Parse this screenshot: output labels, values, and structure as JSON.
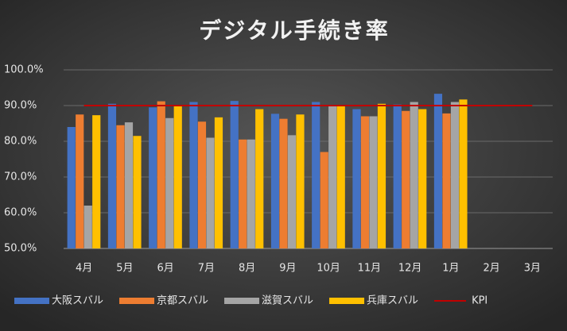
{
  "chart_data": {
    "type": "bar",
    "title": "デジタル手続き率",
    "categories": [
      "4月",
      "5月",
      "6月",
      "7月",
      "8月",
      "9月",
      "10月",
      "11月",
      "12月",
      "1月",
      "2月",
      "3月"
    ],
    "series": [
      {
        "name": "大阪スバル",
        "color": "#4472c4",
        "values": [
          84,
          90.5,
          89.5,
          91,
          91.3,
          87.7,
          91,
          89,
          90.3,
          93.3,
          null,
          null
        ]
      },
      {
        "name": "京都スバル",
        "color": "#ed7d31",
        "values": [
          87.5,
          84.5,
          91.2,
          85.5,
          80.5,
          86.3,
          77,
          87,
          88.5,
          87.8,
          null,
          null
        ]
      },
      {
        "name": "滋賀スバル",
        "color": "#a5a5a5",
        "values": [
          62,
          85.3,
          86.5,
          81,
          80.5,
          81.7,
          90,
          87,
          91,
          91,
          null,
          null
        ]
      },
      {
        "name": "兵庫スバル",
        "color": "#ffc000",
        "values": [
          87.3,
          81.5,
          90,
          86.7,
          89,
          87.5,
          90,
          90.5,
          89,
          91.7,
          null,
          null
        ]
      },
      {
        "name": "KPI",
        "color": "#c00000",
        "type": "line",
        "values": [
          90,
          90,
          90,
          90,
          90,
          90,
          90,
          90,
          90,
          90,
          90,
          90
        ]
      }
    ],
    "ylim": [
      50,
      100
    ],
    "yticks": [
      {
        "value": 50,
        "label": "50.0%"
      },
      {
        "value": 60,
        "label": "60.0%"
      },
      {
        "value": 70,
        "label": "70.0%"
      },
      {
        "value": 80,
        "label": "80.0%"
      },
      {
        "value": 90,
        "label": "90.0%"
      },
      {
        "value": 100,
        "label": "100.0%"
      }
    ],
    "grid": true,
    "legend": "bottom"
  }
}
